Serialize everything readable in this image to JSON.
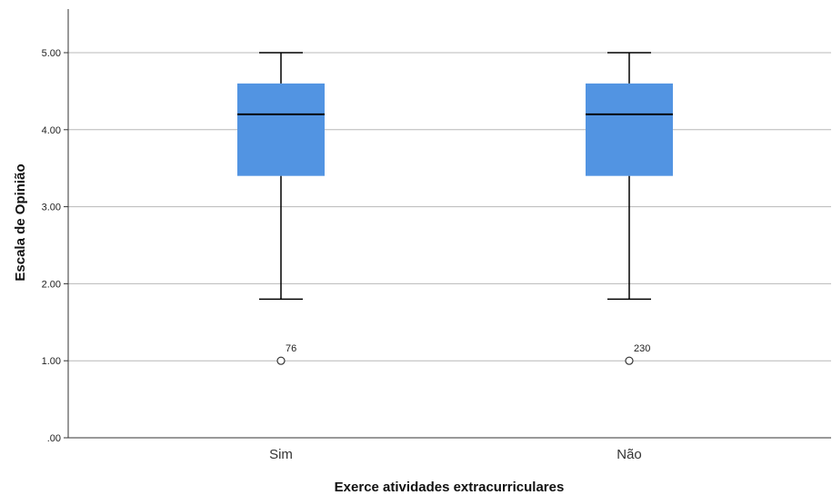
{
  "chart_data": {
    "type": "boxplot",
    "title": "",
    "xlabel": "Exerce atividades extracurriculares",
    "ylabel": "Escala de Opinião",
    "ylim": [
      0,
      5.55
    ],
    "yticks": [
      0,
      1,
      2,
      3,
      4,
      5
    ],
    "ytick_labels": [
      ".00",
      "1.00",
      "2.00",
      "3.00",
      "4.00",
      "5.00"
    ],
    "grid": "horizontal",
    "box_color": "#5294e2",
    "categories": [
      "Sim",
      "Não"
    ],
    "boxes": [
      {
        "category": "Sim",
        "whisker_low": 1.8,
        "q1": 3.4,
        "median": 4.2,
        "q3": 4.6,
        "whisker_high": 5.0,
        "outliers": [
          {
            "value": 1.0,
            "label": "76"
          }
        ]
      },
      {
        "category": "Não",
        "whisker_low": 1.8,
        "q1": 3.4,
        "median": 4.2,
        "q3": 4.6,
        "whisker_high": 5.0,
        "outliers": [
          {
            "value": 1.0,
            "label": "230"
          }
        ]
      }
    ]
  }
}
